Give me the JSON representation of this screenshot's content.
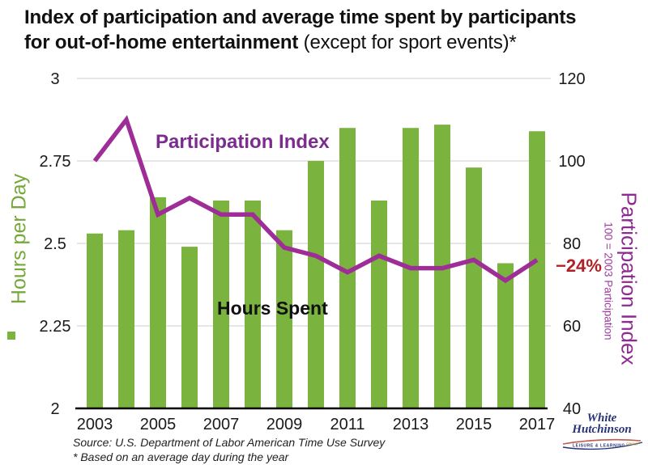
{
  "title": {
    "line1": "Index of participation and average time spent by participants",
    "line2_bold": "for out-of-home entertainment",
    "line2_note": " (except for sport events)*"
  },
  "chart_data": {
    "type": "combo",
    "categories": [
      "2003",
      "2004",
      "2005",
      "2006",
      "2007",
      "2008",
      "2009",
      "2010",
      "2011",
      "2012",
      "2013",
      "2014",
      "2015",
      "2016",
      "2017"
    ],
    "series": [
      {
        "name": "Hours Spent",
        "type": "bar",
        "axis": "left",
        "values": [
          2.53,
          2.54,
          2.64,
          2.49,
          2.63,
          2.63,
          2.54,
          2.75,
          2.85,
          2.63,
          2.85,
          2.86,
          2.73,
          2.44,
          2.84
        ]
      },
      {
        "name": "Participation Index",
        "type": "line",
        "axis": "right",
        "values": [
          100,
          110,
          87,
          91,
          87,
          87,
          79,
          77,
          73,
          77,
          74,
          74,
          76,
          71,
          76
        ]
      }
    ],
    "left_axis": {
      "title": "Hours per Day",
      "min": 2,
      "max": 3,
      "tick_labels": [
        "3",
        "2.75",
        "2.5",
        "2.25",
        "2"
      ]
    },
    "right_axis": {
      "title": "Participation Index",
      "subtitle": "100 = 2003 Participation",
      "min": 40,
      "max": 120,
      "tick_labels": [
        "120",
        "100",
        "80",
        "60",
        "40"
      ]
    },
    "x_tick_labels": [
      "2003",
      "2005",
      "2007",
      "2009",
      "2011",
      "2013",
      "2015",
      "2017"
    ],
    "annotation": "−24%",
    "grid": "horizontal",
    "legend_position": "in-plot text labels"
  },
  "labels": {
    "participation_index": "Participation Index",
    "hours_spent": "Hours Spent",
    "pct_change": "−24%",
    "hours_per_day": "Hours per Day",
    "right_axis_title": "Participation Index",
    "right_axis_subtitle": "100 = 2003 Participation"
  },
  "footer": {
    "source": "Source: U.S. Department of Labor American Time Use Survey",
    "note": "* Based on an average day during the year"
  },
  "logo": {
    "name_line1": "White",
    "name_line2": "Hutchinson",
    "tagline": "LEISURE & LEARNING",
    "tagline_right": "GROUP"
  },
  "colors": {
    "bar_green": "#7ab33e",
    "line_purple": "#9e2d98",
    "label_purple": "#7c2b8e",
    "axis_label_purple": "#8e2a92",
    "annotation_red": "#b02025",
    "grid_gray": "#cccccc",
    "axis_black": "#000000",
    "text_black": "#1a1a1a",
    "logo_navy": "#273377",
    "logo_red": "#c4584a",
    "logo_gold": "#c09a3e"
  }
}
